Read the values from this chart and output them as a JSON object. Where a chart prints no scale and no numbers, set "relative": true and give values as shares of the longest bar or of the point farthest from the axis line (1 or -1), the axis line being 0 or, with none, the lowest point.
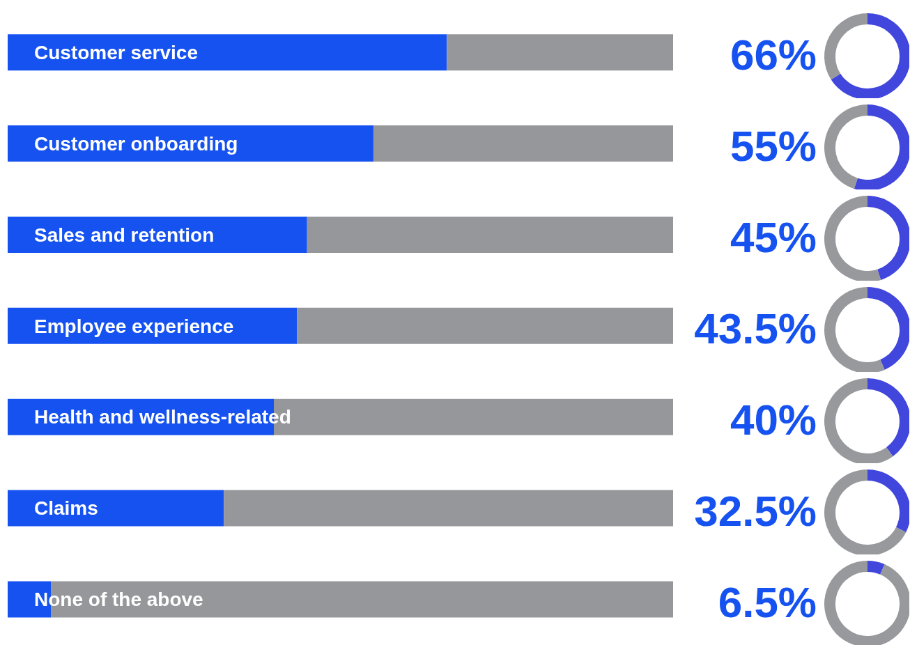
{
  "chart_data": [
    {
      "type": "bar",
      "orientation": "horizontal",
      "stacked": true,
      "relative": true,
      "categories": [
        "Customer service",
        "Customer onboarding",
        "Sales and retention",
        "Employee experience",
        "Health and wellness-related",
        "Claims",
        "None of the above"
      ],
      "series": [
        {
          "color": "#1652f0",
          "values": [
            0.66,
            0.55,
            0.45,
            0.435,
            0.4,
            0.325,
            0.065
          ]
        },
        {
          "color": "#96979a",
          "values": [
            0.34,
            0.45,
            0.55,
            0.565,
            0.6,
            0.675,
            0.935
          ]
        }
      ]
    },
    {
      "type": "donut",
      "categories": [
        null,
        null
      ],
      "values": [
        66,
        34
      ],
      "annotations": [
        "66%"
      ],
      "colors": [
        "#4146dc",
        "#98999c"
      ]
    },
    {
      "type": "donut",
      "categories": [
        null,
        null
      ],
      "values": [
        55,
        45
      ],
      "annotations": [
        "55%"
      ],
      "colors": [
        "#4146dc",
        "#98999c"
      ]
    },
    {
      "type": "donut",
      "categories": [
        null,
        null
      ],
      "values": [
        45,
        55
      ],
      "annotations": [
        "45%"
      ],
      "colors": [
        "#4146dc",
        "#98999c"
      ]
    },
    {
      "type": "donut",
      "categories": [
        null,
        null
      ],
      "values": [
        43.5,
        56.5
      ],
      "annotations": [
        "43.5%"
      ],
      "colors": [
        "#4146dc",
        "#98999c"
      ]
    },
    {
      "type": "donut",
      "categories": [
        null,
        null
      ],
      "values": [
        40,
        60
      ],
      "annotations": [
        "40%"
      ],
      "colors": [
        "#4146dc",
        "#98999c"
      ]
    },
    {
      "type": "donut",
      "categories": [
        null,
        null
      ],
      "values": [
        32.5,
        67.5
      ],
      "annotations": [
        "32.5%"
      ],
      "colors": [
        "#4146dc",
        "#98999c"
      ]
    },
    {
      "type": "donut",
      "categories": [
        null,
        null
      ],
      "values": [
        6.5,
        93.5
      ],
      "annotations": [
        "6.5%"
      ],
      "colors": [
        "#4146dc",
        "#98999c"
      ]
    }
  ]
}
